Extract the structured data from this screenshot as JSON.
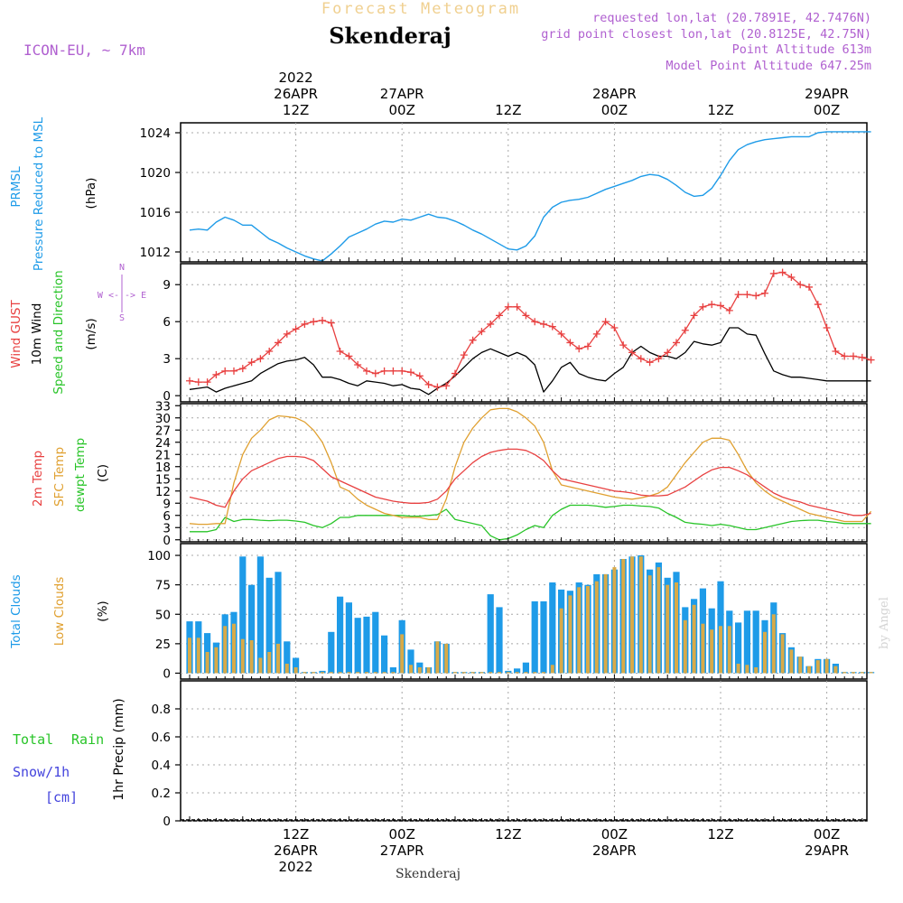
{
  "header": {
    "title_faded": "Forecast Meteogram",
    "location": "Skenderaj",
    "model": "ICON-EU, ~ 7km",
    "info_lines": [
      "requested lon,lat (20.7891E, 42.7476N)",
      "grid point closest lon,lat (20.8125E, 42.75N)",
      "Point Altitude 613m",
      "Model Point Altitude 647.25m"
    ]
  },
  "time_axis": {
    "top_labels": [
      {
        "t": 12,
        "lines": [
          "2022",
          "26APR",
          "12Z"
        ]
      },
      {
        "t": 24,
        "lines": [
          "27APR",
          "00Z"
        ]
      },
      {
        "t": 36,
        "lines": [
          "12Z"
        ]
      },
      {
        "t": 48,
        "lines": [
          "28APR",
          "00Z"
        ]
      },
      {
        "t": 60,
        "lines": [
          "12Z"
        ]
      },
      {
        "t": 72,
        "lines": [
          "29APR",
          "00Z"
        ]
      }
    ],
    "bottom_labels": [
      {
        "t": 12,
        "lines": [
          "12Z",
          "26APR",
          "2022"
        ]
      },
      {
        "t": 24,
        "lines": [
          "00Z",
          "27APR"
        ]
      },
      {
        "t": 36,
        "lines": [
          "12Z"
        ]
      },
      {
        "t": 48,
        "lines": [
          "00Z",
          "28APR"
        ]
      },
      {
        "t": 60,
        "lines": [
          "12Z"
        ]
      },
      {
        "t": 72,
        "lines": [
          "00Z",
          "29APR"
        ]
      }
    ],
    "footer_label": "Skenderaj",
    "watermark": "by Angel"
  },
  "panel_labels": {
    "pressure": {
      "l1": "PRMSL",
      "l2": "Pressure Reduced to MSL",
      "unit": "(hPa)"
    },
    "wind": {
      "l1": "Wind GUST",
      "l2": "10m Wind",
      "l3": "Speed and Direction",
      "unit": "(m/s)",
      "compass_n": "N",
      "compass_s": "S",
      "compass_we": "W <-|-> E"
    },
    "temp": {
      "l1": "2m Temp",
      "l2": "SFC Temp",
      "l3": "dewpt Temp",
      "unit": "(C)"
    },
    "clouds": {
      "l1": "Total Clouds",
      "l2": "Low Clouds",
      "unit": "(%)"
    },
    "precip": {
      "l1": "Total",
      "l1b": "Rain",
      "l2": "Snow/1h",
      "l3": "[cm]",
      "unit": "1hr Precip (mm)"
    }
  },
  "colors": {
    "pressure": "#1e9be8",
    "gust": "#e84040",
    "wind": "#000000",
    "t2m": "#e84040",
    "sfc": "#e0a030",
    "dewpt": "#28c428",
    "total_clouds": "#1e9be8",
    "low_clouds": "#d8aa48",
    "rain_label": "#28c428",
    "snow_label": "#4444dd",
    "meta": "#b060d0",
    "faded": "#f0d090"
  },
  "chart_data": [
    {
      "type": "line",
      "name": "pressure",
      "ylabel": "(hPa)",
      "ylim": [
        1011,
        1025
      ],
      "yticks": [
        1012,
        1016,
        1020,
        1024
      ],
      "x": [
        0,
        1,
        2,
        3,
        4,
        5,
        6,
        7,
        8,
        9,
        10,
        11,
        12,
        13,
        14,
        15,
        16,
        17,
        18,
        19,
        20,
        21,
        22,
        23,
        24,
        25,
        26,
        27,
        28,
        29,
        30,
        31,
        32,
        33,
        34,
        35,
        36,
        37,
        38,
        39,
        40,
        41,
        42,
        43,
        44,
        45,
        46,
        47,
        48,
        49,
        50,
        51,
        52,
        53,
        54,
        55,
        56,
        57,
        58,
        59,
        60,
        61,
        62,
        63,
        64,
        65,
        66,
        67,
        68,
        69,
        70,
        71,
        72,
        73,
        74,
        75,
        76,
        77
      ],
      "series": [
        {
          "name": "PRMSL",
          "values": [
            1014.2,
            1014.3,
            1014.2,
            1015.0,
            1015.5,
            1015.2,
            1014.7,
            1014.7,
            1014.0,
            1013.3,
            1012.9,
            1012.4,
            1012.0,
            1011.6,
            1011.3,
            1011.1,
            1011.8,
            1012.6,
            1013.5,
            1013.9,
            1014.3,
            1014.8,
            1015.1,
            1015.0,
            1015.3,
            1015.2,
            1015.5,
            1015.8,
            1015.5,
            1015.4,
            1015.1,
            1014.7,
            1014.2,
            1013.8,
            1013.3,
            1012.8,
            1012.3,
            1012.2,
            1012.6,
            1013.6,
            1015.5,
            1016.5,
            1017.0,
            1017.2,
            1017.3,
            1017.5,
            1017.9,
            1018.3,
            1018.6,
            1018.9,
            1019.2,
            1019.6,
            1019.8,
            1019.7,
            1019.3,
            1018.7,
            1018.0,
            1017.6,
            1017.7,
            1018.4,
            1019.7,
            1021.2,
            1022.3,
            1022.8,
            1023.1,
            1023.3,
            1023.4,
            1023.5,
            1023.6,
            1023.6,
            1023.6,
            1024.0,
            1024.1,
            1024.1,
            1024.1,
            1024.1,
            1024.1,
            1024.1
          ]
        }
      ]
    },
    {
      "type": "line",
      "name": "wind",
      "ylabel": "(m/s)",
      "ylim": [
        -0.5,
        10.7
      ],
      "yticks": [
        0,
        3,
        6,
        9
      ],
      "x": [
        0,
        1,
        2,
        3,
        4,
        5,
        6,
        7,
        8,
        9,
        10,
        11,
        12,
        13,
        14,
        15,
        16,
        17,
        18,
        19,
        20,
        21,
        22,
        23,
        24,
        25,
        26,
        27,
        28,
        29,
        30,
        31,
        32,
        33,
        34,
        35,
        36,
        37,
        38,
        39,
        40,
        41,
        42,
        43,
        44,
        45,
        46,
        47,
        48,
        49,
        50,
        51,
        52,
        53,
        54,
        55,
        56,
        57,
        58,
        59,
        60,
        61,
        62,
        63,
        64,
        65,
        66,
        67,
        68,
        69,
        70,
        71,
        72,
        73,
        74,
        75,
        76,
        77
      ],
      "series": [
        {
          "name": "Wind GUST",
          "values": [
            1.2,
            1.1,
            1.1,
            1.7,
            2.0,
            2.0,
            2.2,
            2.7,
            3.0,
            3.6,
            4.3,
            5.0,
            5.4,
            5.8,
            6.0,
            6.1,
            5.9,
            3.6,
            3.2,
            2.5,
            2.0,
            1.8,
            2.0,
            2.0,
            2.0,
            1.9,
            1.6,
            0.9,
            0.7,
            0.8,
            1.8,
            3.3,
            4.5,
            5.2,
            5.8,
            6.5,
            7.2,
            7.2,
            6.5,
            6.0,
            5.8,
            5.6,
            5.0,
            4.3,
            3.8,
            4.0,
            5.0,
            6.0,
            5.5,
            4.1,
            3.5,
            3.0,
            2.7,
            3.0,
            3.5,
            4.3,
            5.3,
            6.5,
            7.2,
            7.4,
            7.3,
            6.9,
            8.2,
            8.2,
            8.1,
            8.3,
            9.9,
            10.0,
            9.6,
            9.0,
            8.8,
            7.4,
            5.5,
            3.6,
            3.2,
            3.2,
            3.1,
            2.9
          ]
        },
        {
          "name": "10m Wind",
          "values": [
            0.5,
            0.6,
            0.7,
            0.3,
            0.6,
            0.8,
            1.0,
            1.2,
            1.8,
            2.2,
            2.6,
            2.8,
            2.9,
            3.1,
            2.5,
            1.5,
            1.5,
            1.3,
            1.0,
            0.8,
            1.2,
            1.1,
            1.0,
            0.8,
            0.9,
            0.6,
            0.5,
            0.1,
            0.6,
            1.0,
            1.6,
            2.3,
            3.0,
            3.5,
            3.8,
            3.5,
            3.2,
            3.5,
            3.2,
            2.5,
            0.3,
            1.2,
            2.3,
            2.7,
            1.8,
            1.5,
            1.3,
            1.2,
            1.8,
            2.3,
            3.5,
            4.0,
            3.5,
            3.2,
            3.2,
            3.0,
            3.5,
            4.4,
            4.2,
            4.1,
            4.3,
            5.5,
            5.5,
            5.0,
            4.9,
            3.4,
            2.0,
            1.7,
            1.5,
            1.5,
            1.4,
            1.3,
            1.2,
            1.2,
            1.2,
            1.2,
            1.2,
            1.2
          ]
        }
      ]
    },
    {
      "type": "line",
      "name": "temperature",
      "ylabel": "(C)",
      "ylim": [
        -0.5,
        33.5
      ],
      "yticks": [
        0,
        3,
        6,
        9,
        12,
        15,
        18,
        21,
        24,
        27,
        30,
        33
      ],
      "x": [
        0,
        1,
        2,
        3,
        4,
        5,
        6,
        7,
        8,
        9,
        10,
        11,
        12,
        13,
        14,
        15,
        16,
        17,
        18,
        19,
        20,
        21,
        22,
        23,
        24,
        25,
        26,
        27,
        28,
        29,
        30,
        31,
        32,
        33,
        34,
        35,
        36,
        37,
        38,
        39,
        40,
        41,
        42,
        43,
        44,
        45,
        46,
        47,
        48,
        49,
        50,
        51,
        52,
        53,
        54,
        55,
        56,
        57,
        58,
        59,
        60,
        61,
        62,
        63,
        64,
        65,
        66,
        67,
        68,
        69,
        70,
        71,
        72,
        73,
        74,
        75,
        76,
        77
      ],
      "series": [
        {
          "name": "2m Temp",
          "values": [
            10.5,
            10.0,
            9.5,
            8.5,
            8.0,
            12.0,
            15.0,
            17.0,
            18.0,
            19.0,
            20.0,
            20.5,
            20.5,
            20.3,
            19.5,
            17.5,
            15.5,
            14.5,
            13.5,
            12.5,
            11.5,
            10.5,
            10.0,
            9.5,
            9.2,
            9.0,
            9.0,
            9.2,
            10.0,
            12.0,
            15.0,
            17.0,
            19.0,
            20.5,
            21.5,
            22.0,
            22.3,
            22.3,
            22.0,
            21.0,
            19.5,
            17.0,
            15.0,
            14.5,
            14.0,
            13.5,
            13.0,
            12.5,
            12.0,
            11.8,
            11.5,
            11.0,
            10.8,
            10.8,
            11.0,
            12.0,
            13.0,
            14.5,
            16.0,
            17.2,
            17.8,
            17.8,
            17.0,
            16.0,
            14.5,
            13.0,
            11.5,
            10.5,
            9.8,
            9.3,
            8.5,
            8.0,
            7.5,
            7.0,
            6.5,
            6.0,
            6.0,
            6.5
          ]
        },
        {
          "name": "SFC Temp",
          "values": [
            4.0,
            3.8,
            3.8,
            4.0,
            4.0,
            14.0,
            21.0,
            25.0,
            27.0,
            29.5,
            30.5,
            30.3,
            30.0,
            29.0,
            27.0,
            24.0,
            19.0,
            13.0,
            12.0,
            10.0,
            8.5,
            7.5,
            6.5,
            6.0,
            5.5,
            5.5,
            5.5,
            5.0,
            5.0,
            10.0,
            18.0,
            24.0,
            27.5,
            30.0,
            32.0,
            32.3,
            32.3,
            31.5,
            30.0,
            28.0,
            24.0,
            17.0,
            13.5,
            13.0,
            12.5,
            12.0,
            11.5,
            11.0,
            10.5,
            10.2,
            10.0,
            10.3,
            10.8,
            11.5,
            13.0,
            16.0,
            19.0,
            21.5,
            24.0,
            25.0,
            25.0,
            24.5,
            21.0,
            17.0,
            14.0,
            12.0,
            10.5,
            9.5,
            8.5,
            7.5,
            6.5,
            6.0,
            5.5,
            5.0,
            4.5,
            4.5,
            4.5,
            7.0
          ]
        },
        {
          "name": "dewpt Temp",
          "values": [
            2.0,
            2.0,
            2.0,
            2.5,
            5.5,
            4.5,
            5.0,
            5.0,
            4.8,
            4.7,
            4.8,
            4.8,
            4.6,
            4.3,
            3.5,
            3.0,
            4.0,
            5.5,
            5.5,
            6.0,
            6.0,
            6.0,
            6.0,
            6.0,
            6.0,
            5.8,
            5.8,
            6.0,
            6.2,
            7.5,
            5.0,
            4.5,
            4.0,
            3.5,
            1.0,
            0.0,
            0.3,
            1.2,
            2.5,
            3.5,
            3.0,
            6.0,
            7.5,
            8.5,
            8.5,
            8.5,
            8.3,
            8.0,
            8.2,
            8.5,
            8.5,
            8.3,
            8.2,
            7.8,
            6.5,
            5.5,
            4.3,
            4.0,
            3.8,
            3.5,
            3.8,
            3.5,
            3.0,
            2.5,
            2.5,
            3.0,
            3.5,
            4.0,
            4.5,
            4.7,
            4.8,
            4.8,
            4.5,
            4.3,
            4.0,
            4.0,
            4.0,
            4.0
          ]
        }
      ]
    },
    {
      "type": "bar",
      "name": "clouds",
      "ylabel": "(%)",
      "ylim": [
        -5,
        110
      ],
      "yticks": [
        0,
        25,
        50,
        75,
        100
      ],
      "x": [
        0,
        1,
        2,
        3,
        4,
        5,
        6,
        7,
        8,
        9,
        10,
        11,
        12,
        13,
        14,
        15,
        16,
        17,
        18,
        19,
        20,
        21,
        22,
        23,
        24,
        25,
        26,
        27,
        28,
        29,
        30,
        31,
        32,
        33,
        34,
        35,
        36,
        37,
        38,
        39,
        40,
        41,
        42,
        43,
        44,
        45,
        46,
        47,
        48,
        49,
        50,
        51,
        52,
        53,
        54,
        55,
        56,
        57,
        58,
        59,
        60,
        61,
        62,
        63,
        64,
        65,
        66,
        67,
        68,
        69,
        70,
        71,
        72,
        73,
        74,
        75,
        76,
        77
      ],
      "series": [
        {
          "name": "Total Clouds",
          "values": [
            44,
            44,
            34,
            26,
            50,
            52,
            99,
            75,
            99,
            81,
            86,
            27,
            13,
            1,
            1,
            2,
            35,
            65,
            60,
            47,
            48,
            52,
            32,
            5,
            45,
            20,
            9,
            5,
            27,
            25,
            1,
            1,
            1,
            1,
            67,
            56,
            2,
            4,
            9,
            61,
            61,
            77,
            71,
            70,
            77,
            75,
            84,
            84,
            88,
            97,
            99,
            100,
            88,
            94,
            81,
            86,
            56,
            63,
            72,
            55,
            78,
            53,
            43,
            53,
            53,
            45,
            60,
            34,
            22,
            14,
            6,
            12,
            12,
            8,
            1,
            1,
            1,
            1
          ]
        },
        {
          "name": "Low Clouds",
          "values": [
            30,
            30,
            18,
            22,
            40,
            42,
            29,
            28,
            13,
            18,
            25,
            8,
            5,
            1,
            1,
            1,
            1,
            1,
            1,
            1,
            1,
            1,
            1,
            1,
            33,
            7,
            5,
            5,
            27,
            25,
            1,
            1,
            1,
            1,
            1,
            1,
            1,
            1,
            1,
            1,
            1,
            7,
            55,
            66,
            73,
            74,
            78,
            84,
            90,
            97,
            99,
            99,
            83,
            90,
            75,
            77,
            45,
            58,
            42,
            37,
            40,
            40,
            8,
            7,
            5,
            35,
            50,
            33,
            20,
            14,
            6,
            11,
            12,
            6,
            1,
            1,
            1,
            1
          ]
        }
      ]
    },
    {
      "type": "bar",
      "name": "precip",
      "ylabel": "1hr Precip (mm)",
      "ylim": [
        0,
        1.0
      ],
      "yticks": [
        0,
        0.2,
        0.4,
        0.6,
        0.8
      ],
      "series": [
        {
          "name": "Total Rain",
          "values": []
        }
      ]
    }
  ]
}
